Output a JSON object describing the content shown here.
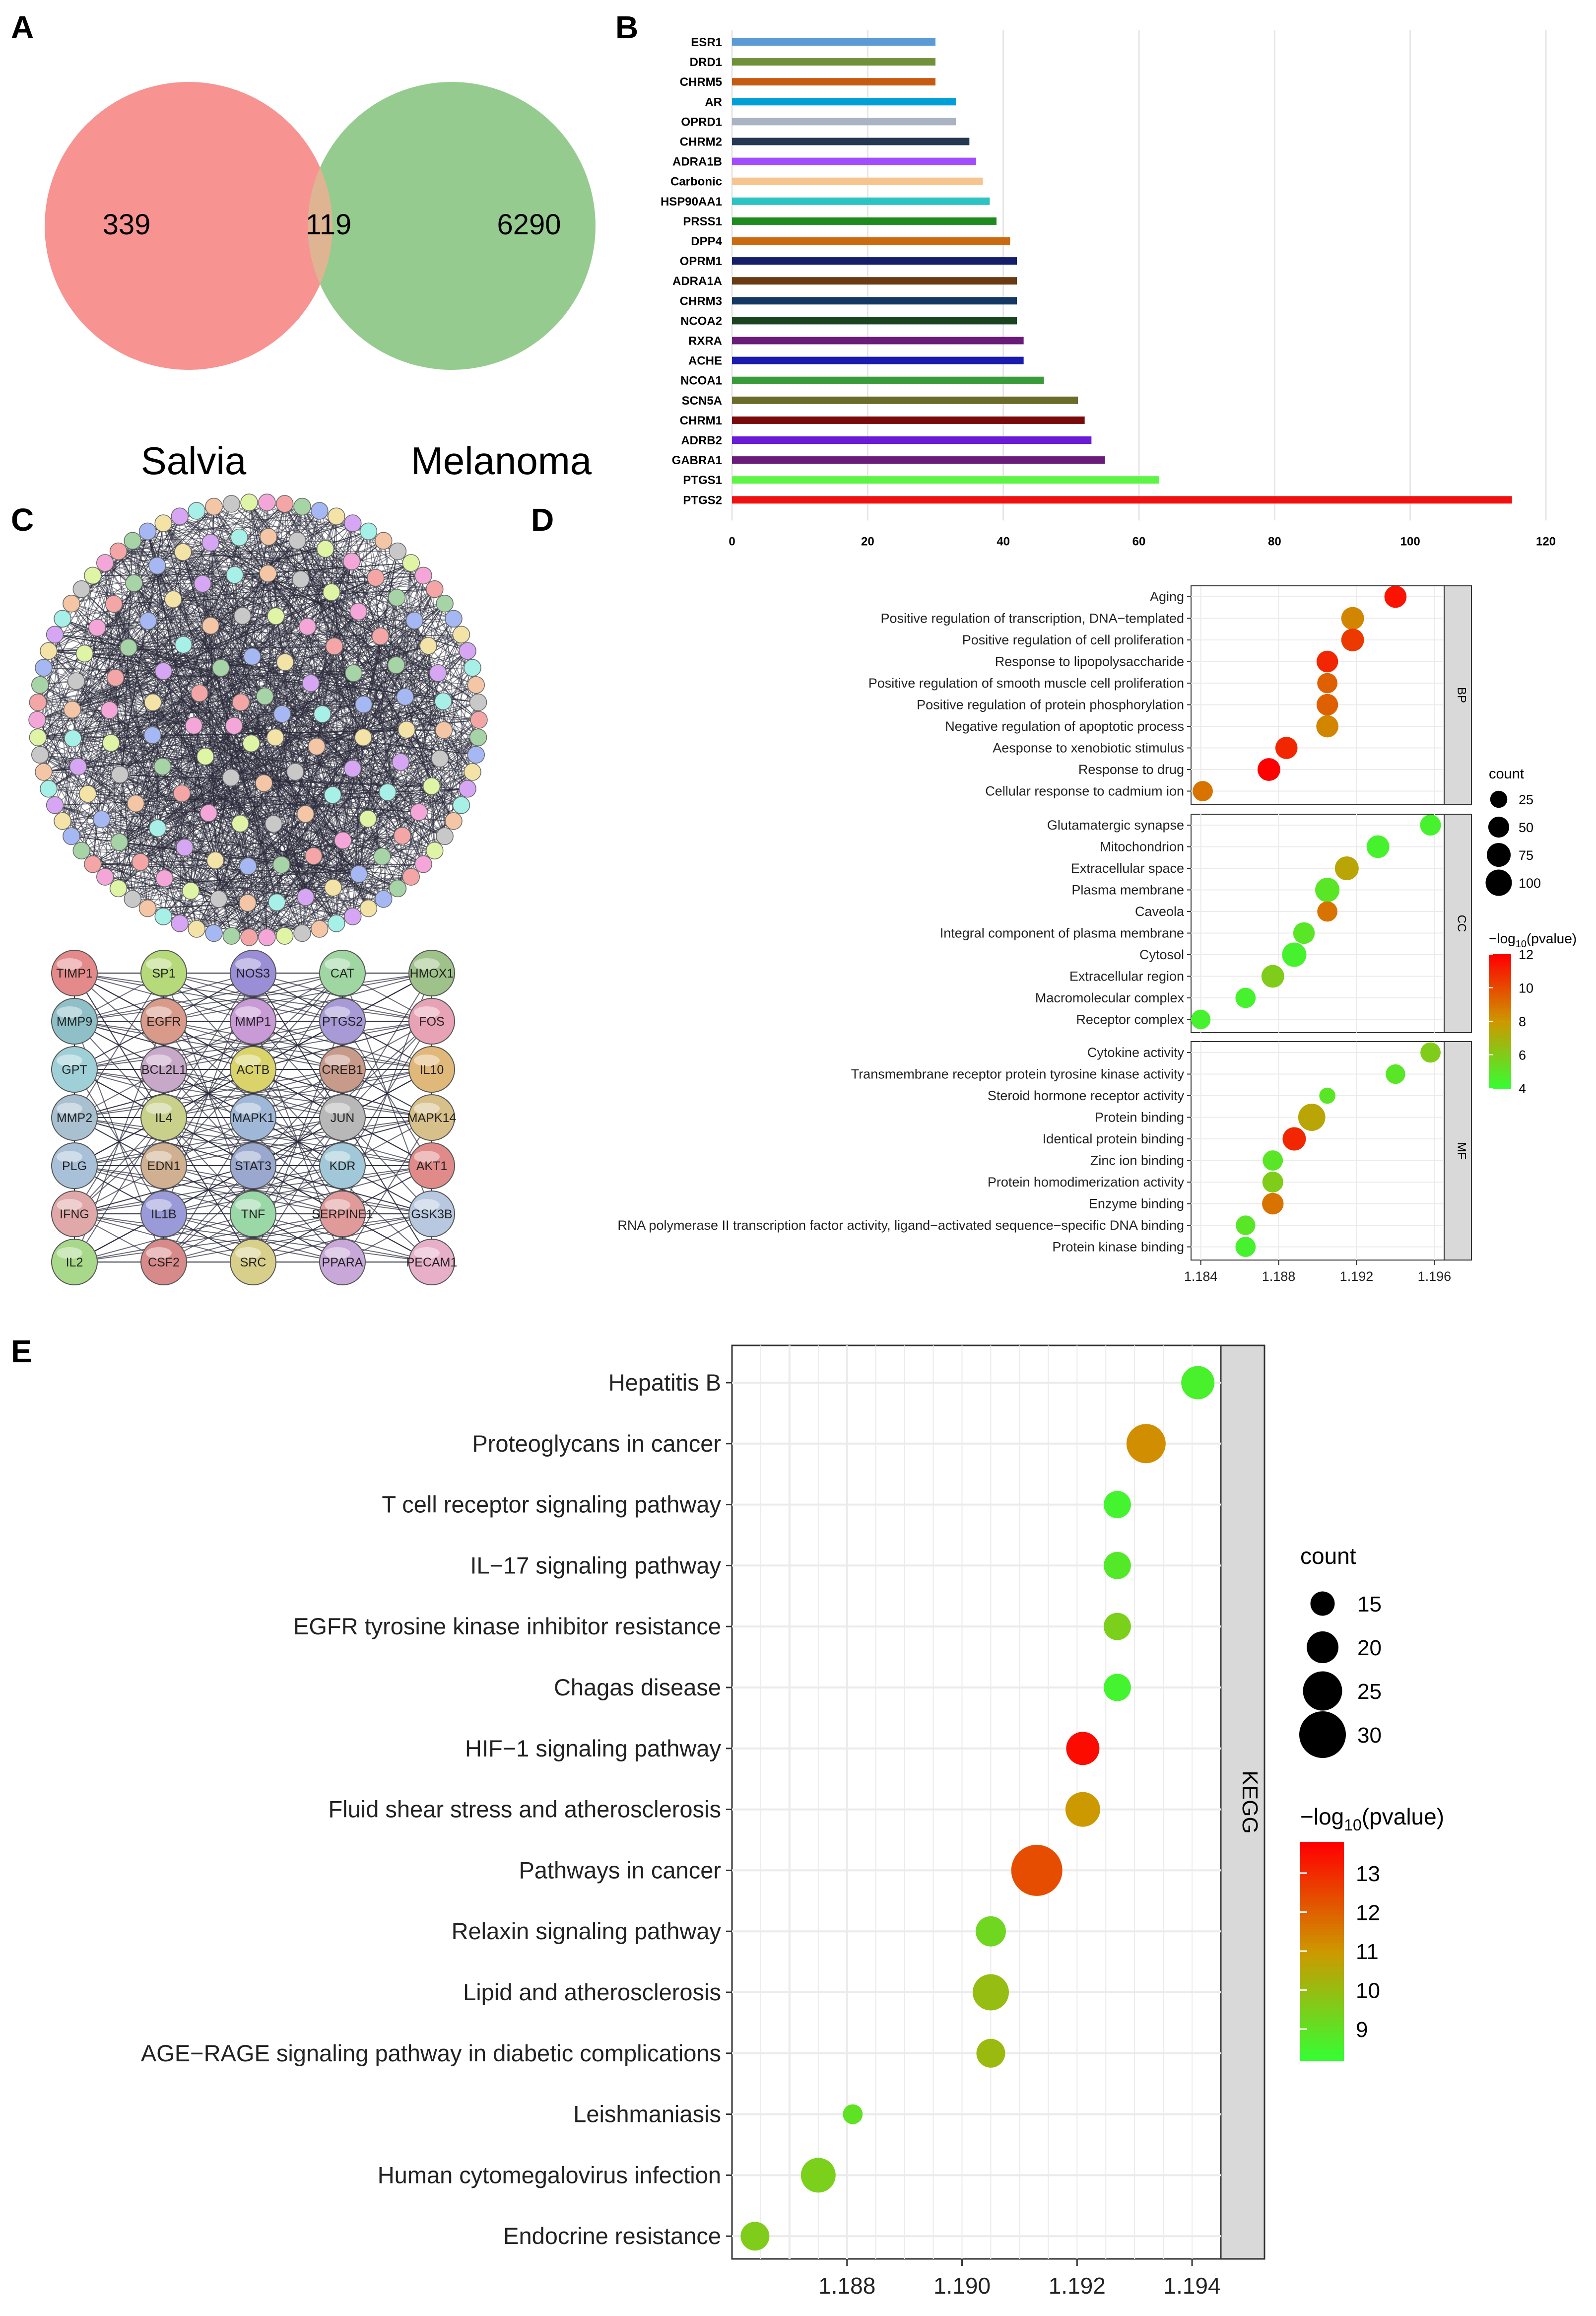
{
  "panels": {
    "A": "A",
    "B": "B",
    "C": "C",
    "D": "D",
    "E": "E"
  },
  "venn": {
    "left_label": "Salvia",
    "right_label": "Melanoma",
    "left_only": "339",
    "overlap": "119",
    "right_only": "6290",
    "colors": {
      "left": "#f79391",
      "right": "#96cb90",
      "overlap": "#dfb493"
    }
  },
  "chart_data": [
    {
      "id": "B",
      "type": "bar",
      "orientation": "horizontal",
      "title": "",
      "xlabel": "",
      "ylabel": "",
      "categories": [
        "ESR1",
        "DRD1",
        "CHRM5",
        "AR",
        "OPRD1",
        "CHRM2",
        "ADRA1B",
        "Carbonic",
        "HSP90AA1",
        "PRSS1",
        "DPP4",
        "OPRM1",
        "ADRA1A",
        "CHRM3",
        "NCOA2",
        "RXRA",
        "ACHE",
        "NCOA1",
        "SCN5A",
        "CHRM1",
        "ADRB2",
        "GABRA1",
        "PTGS1",
        "PTGS2"
      ],
      "values": [
        30,
        30,
        30,
        33,
        33,
        35,
        36,
        37,
        38,
        39,
        41,
        42,
        42,
        42,
        42,
        43,
        43,
        46,
        51,
        52,
        53,
        55,
        63,
        115
      ],
      "colors": [
        "#5b9bd5",
        "#70913a",
        "#c55a11",
        "#00a0d6",
        "#a9b3c2",
        "#243852",
        "#a34cff",
        "#f7c490",
        "#2cc3c3",
        "#1f8b1f",
        "#cc6a12",
        "#131f6b",
        "#6a3a12",
        "#143763",
        "#1a441d",
        "#6a1b7a",
        "#1a1ab0",
        "#3a9b3a",
        "#6b6b2a",
        "#7a0a0a",
        "#6a1bd6",
        "#6a1b7a",
        "#5cf544",
        "#f01010"
      ],
      "xticks": [
        "0",
        "20",
        "40",
        "60",
        "80",
        "100",
        "120"
      ],
      "xlim": [
        0,
        120
      ]
    },
    {
      "id": "D",
      "type": "scatter",
      "subtype": "dot-plot",
      "facets": [
        {
          "label": "BP",
          "terms": [
            {
              "term": "Aging",
              "x": 1.194,
              "count": 60,
              "logp": 11.5
            },
            {
              "term": "Positive regulation of transcription, DNA−templated",
              "x": 1.1918,
              "count": 65,
              "logp": 8.5
            },
            {
              "term": "Positive regulation of cell proliferation",
              "x": 1.1918,
              "count": 65,
              "logp": 10.5
            },
            {
              "term": "Response to lipopolysaccharide",
              "x": 1.1905,
              "count": 55,
              "logp": 11.0
            },
            {
              "term": "Positive regulation of smooth muscle cell proliferation",
              "x": 1.1905,
              "count": 45,
              "logp": 9.5
            },
            {
              "term": "Positive regulation of protein phosphorylation",
              "x": 1.1905,
              "count": 55,
              "logp": 9.5
            },
            {
              "term": "Negative regulation of apoptotic process",
              "x": 1.1905,
              "count": 60,
              "logp": 8.5
            },
            {
              "term": "Aesponse to xenobiotic stimulus",
              "x": 1.1884,
              "count": 60,
              "logp": 11.0
            },
            {
              "term": "Response to drug",
              "x": 1.1875,
              "count": 65,
              "logp": 12.5
            },
            {
              "term": "Cellular response to cadmium ion",
              "x": 1.1841,
              "count": 45,
              "logp": 9.0
            }
          ]
        },
        {
          "label": "CC",
          "terms": [
            {
              "term": "Glutamatergic synapse",
              "x": 1.1958,
              "count": 50,
              "logp": 4.5
            },
            {
              "term": "Mitochondrion",
              "x": 1.1931,
              "count": 65,
              "logp": 4.5
            },
            {
              "term": "Extracellular space",
              "x": 1.1915,
              "count": 75,
              "logp": 7.5
            },
            {
              "term": "Plasma membrane",
              "x": 1.1905,
              "count": 80,
              "logp": 5.0
            },
            {
              "term": "Caveola",
              "x": 1.1905,
              "count": 45,
              "logp": 9.0
            },
            {
              "term": "Integral component of plasma membrane",
              "x": 1.1893,
              "count": 55,
              "logp": 5.0
            },
            {
              "term": "Cytosol",
              "x": 1.1888,
              "count": 80,
              "logp": 4.5
            },
            {
              "term": "Extracellular region",
              "x": 1.1877,
              "count": 65,
              "logp": 6.0
            },
            {
              "term": "Macromolecular complex",
              "x": 1.1863,
              "count": 45,
              "logp": 4.5
            },
            {
              "term": "Receptor complex",
              "x": 1.184,
              "count": 40,
              "logp": 4.5
            }
          ]
        },
        {
          "label": "MF",
          "terms": [
            {
              "term": "Cytokine activity",
              "x": 1.1958,
              "count": 45,
              "logp": 6.0
            },
            {
              "term": "Transmembrane receptor protein tyrosine kinase activity",
              "x": 1.194,
              "count": 40,
              "logp": 5.0
            },
            {
              "term": "Steroid hormone receptor activity",
              "x": 1.1905,
              "count": 20,
              "logp": 5.0
            },
            {
              "term": "Protein binding",
              "x": 1.1897,
              "count": 110,
              "logp": 7.5
            },
            {
              "term": "Identical protein binding",
              "x": 1.1888,
              "count": 70,
              "logp": 11.0
            },
            {
              "term": "Zinc ion binding",
              "x": 1.1877,
              "count": 45,
              "logp": 5.0
            },
            {
              "term": "Protein homodimerization activity",
              "x": 1.1877,
              "count": 50,
              "logp": 6.0
            },
            {
              "term": "Enzyme binding",
              "x": 1.1877,
              "count": 55,
              "logp": 9.0
            },
            {
              "term": "RNA polymerase II transcription factor activity, ligand−activated sequence−specific DNA binding",
              "x": 1.1863,
              "count": 40,
              "logp": 5.0
            },
            {
              "term": "Protein kinase binding",
              "x": 1.1863,
              "count": 45,
              "logp": 4.5
            }
          ]
        }
      ],
      "xlim": [
        1.1835,
        1.1965
      ],
      "xticks": [
        "1.184",
        "1.188",
        "1.192",
        "1.196"
      ],
      "legend": {
        "size_title": "count",
        "sizes": [
          "25",
          "50",
          "75",
          "100"
        ],
        "color_title_main": "−log",
        "color_title_sub": "10",
        "color_title_tail": "(pvalue)",
        "color_ticks": [
          "12",
          "10",
          "8",
          "6",
          "4"
        ],
        "color_range": [
          4,
          12
        ]
      }
    },
    {
      "id": "E",
      "type": "scatter",
      "subtype": "dot-plot",
      "facet_label": "KEGG",
      "terms": [
        {
          "term": "Hepatitis B",
          "x": 1.1941,
          "count": 21,
          "logp": 8.6
        },
        {
          "term": "Proteoglycans in cancer",
          "x": 1.1932,
          "count": 25,
          "logp": 11.2
        },
        {
          "term": "T cell receptor signaling pathway",
          "x": 1.1927,
          "count": 17,
          "logp": 8.5
        },
        {
          "term": "IL−17 signaling pathway",
          "x": 1.1927,
          "count": 17,
          "logp": 8.8
        },
        {
          "term": "EGFR tyrosine kinase inhibitor resistance",
          "x": 1.1927,
          "count": 17,
          "logp": 9.5
        },
        {
          "term": "Chagas disease",
          "x": 1.1927,
          "count": 17,
          "logp": 8.5
        },
        {
          "term": "HIF−1 signaling pathway",
          "x": 1.1921,
          "count": 21,
          "logp": 13.6
        },
        {
          "term": "Fluid shear stress and atherosclerosis",
          "x": 1.1921,
          "count": 22,
          "logp": 11.0
        },
        {
          "term": "Pathways in cancer",
          "x": 1.1913,
          "count": 33,
          "logp": 12.4
        },
        {
          "term": "Relaxin signaling pathway",
          "x": 1.1905,
          "count": 19,
          "logp": 9.3
        },
        {
          "term": "Lipid and atherosclerosis",
          "x": 1.1905,
          "count": 23,
          "logp": 10.0
        },
        {
          "term": "AGE−RAGE signaling pathway in diabetic complications",
          "x": 1.1905,
          "count": 18,
          "logp": 10.1
        },
        {
          "term": "Leishmaniasis",
          "x": 1.1881,
          "count": 12,
          "logp": 9.0
        },
        {
          "term": "Human cytomegalovirus infection",
          "x": 1.1875,
          "count": 22,
          "logp": 9.5
        },
        {
          "term": "Endocrine resistance",
          "x": 1.1864,
          "count": 18,
          "logp": 9.6
        }
      ],
      "xlim": [
        1.186,
        1.1945
      ],
      "xticks": [
        "1.188",
        "1.190",
        "1.192",
        "1.194"
      ],
      "legend": {
        "size_title": "count",
        "sizes": [
          "15",
          "20",
          "25",
          "30"
        ],
        "color_title_main": "−log",
        "color_title_sub": "10",
        "color_title_tail": "(pvalue)",
        "color_ticks": [
          "13",
          "12",
          "11",
          "10",
          "9"
        ],
        "color_range": [
          8.2,
          13.8
        ]
      }
    }
  ],
  "network": {
    "node_colors": [
      "#f4a6a6",
      "#a6d4a6",
      "#a6b8f4",
      "#f4e3a6",
      "#d6a6f4",
      "#a6f0e8",
      "#f4c6a6",
      "#c8c8c8",
      "#e0f4a6",
      "#f4a6d9"
    ],
    "hub_nodes": [
      [
        "TIMP1",
        "SP1",
        "NOS3",
        "CAT",
        "HMOX1"
      ],
      [
        "MMP9",
        "EGFR",
        "MMP1",
        "PTGS2",
        "FOS"
      ],
      [
        "GPT",
        "BCL2L1",
        "ACTB",
        "CREB1",
        "IL10"
      ],
      [
        "MMP2",
        "IL4",
        "MAPK1",
        "JUN",
        "MAPK14"
      ],
      [
        "PLG",
        "EDN1",
        "STAT3",
        "KDR",
        "AKT1"
      ],
      [
        "IFNG",
        "IL1B",
        "TNF",
        "SERPINE1",
        "GSK3B"
      ],
      [
        "IL2",
        "CSF2",
        "SRC",
        "PPARA",
        "PECAM1"
      ]
    ],
    "hub_colors": [
      [
        "#e48a8a",
        "#b6d97a",
        "#9a8fd6",
        "#9fd6a2",
        "#9fc28a"
      ],
      [
        "#8fc0c8",
        "#d99a8a",
        "#c89ad6",
        "#a89ad6",
        "#e7a3b5"
      ],
      [
        "#9fd0d8",
        "#c8a8c8",
        "#d9d36a",
        "#c89a8a",
        "#e0b87a"
      ],
      [
        "#a8c0d0",
        "#c8d08a",
        "#a0b8d8",
        "#b8b8b8",
        "#d8c08a"
      ],
      [
        "#a8c0d8",
        "#d0b090",
        "#9aa8d0",
        "#a0c8d8",
        "#e08a8a"
      ],
      [
        "#e0a8a8",
        "#9a9ad8",
        "#9ad8a8",
        "#e09a9a",
        "#b8c8e0"
      ],
      [
        "#a8d88a",
        "#d88a8a",
        "#d8d08a",
        "#c8a8d8",
        "#e8b0c8"
      ]
    ]
  }
}
